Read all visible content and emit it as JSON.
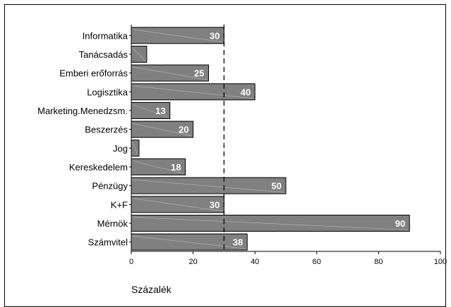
{
  "chart_data": {
    "type": "bar",
    "orientation": "horizontal",
    "categories": [
      "Informatika",
      "Tanácsadás",
      "Emberi erőforrás",
      "Logisztika",
      "Marketing.Menedzsm.",
      "Beszerzés",
      "Jog",
      "Kereskedelem",
      "Pénzügy",
      "K+F",
      "Mérnök",
      "Számvitel"
    ],
    "values": [
      30,
      5,
      25,
      40,
      12.5,
      20,
      2.5,
      17.5,
      50,
      30,
      90,
      37.5
    ],
    "data_labels": [
      "30",
      "",
      "25",
      "40",
      "13",
      "20",
      "",
      "18",
      "50",
      "30",
      "90",
      "38"
    ],
    "xlabel": "Százalék",
    "xlim": [
      0,
      100
    ],
    "xticks": [
      0,
      20,
      40,
      60,
      80,
      100
    ],
    "reference_line": 30,
    "bar_color": "#808080",
    "grid": false,
    "legend": "none"
  }
}
